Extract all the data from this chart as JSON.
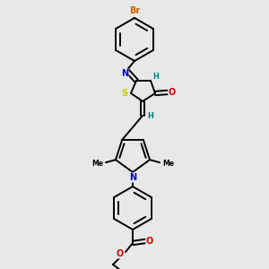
{
  "background_color": "#e8e8e8",
  "atom_colors": {
    "Br": "#cc6600",
    "N": "#0000cc",
    "H": "#008080",
    "O": "#cc0000",
    "S": "#cccc00",
    "C": "#000000"
  },
  "bond_color": "#000000",
  "lw": 1.4
}
